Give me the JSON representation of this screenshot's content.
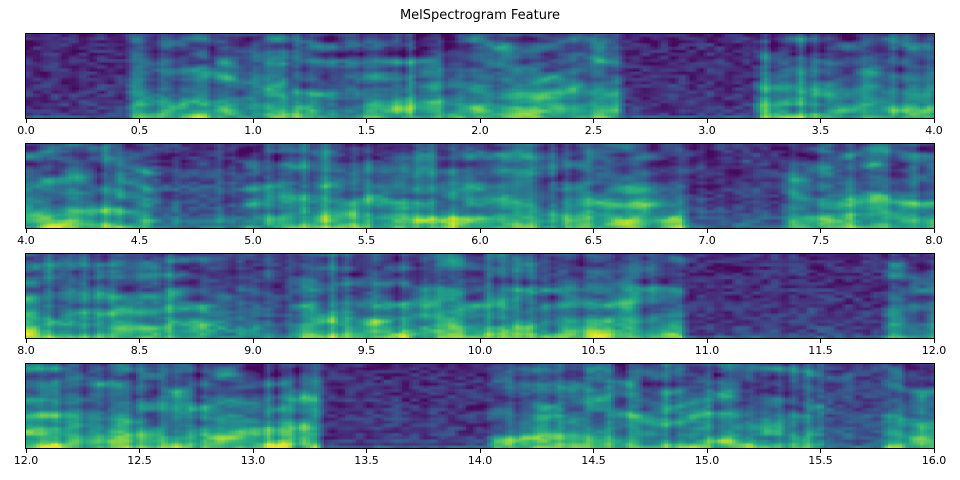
{
  "figure": {
    "title": "MelSpectrogram Feature"
  },
  "chart_data": {
    "type": "heatmap",
    "subtype": "mel_spectrogram",
    "title": "MelSpectrogram Feature",
    "colormap": "viridis",
    "viridis_stops": [
      "#440154",
      "#482878",
      "#3e4a89",
      "#31688e",
      "#26828e",
      "#1f9e89",
      "#35b779",
      "#6ece58",
      "#b5de2b",
      "#fde725"
    ],
    "x_unit": "seconds",
    "n_subplots": 4,
    "y_axis": "mel frequency bins (unlabeled)",
    "subplots": [
      {
        "x_range": [
          0.0,
          4.0
        ],
        "x_ticks": [
          "0.0",
          "0.5",
          "1.0",
          "1.5",
          "2.0",
          "2.5",
          "3.0",
          "3.5",
          "4.0"
        ],
        "activity_segments": [
          {
            "from": 0.0,
            "to": 0.45,
            "level": 0.12
          },
          {
            "from": 0.45,
            "to": 1.38,
            "level": 0.75
          },
          {
            "from": 1.38,
            "to": 1.47,
            "level": 0.45
          },
          {
            "from": 1.47,
            "to": 2.62,
            "level": 0.8
          },
          {
            "from": 2.62,
            "to": 3.22,
            "level": 0.12
          },
          {
            "from": 3.22,
            "to": 4.0,
            "level": 0.8
          }
        ]
      },
      {
        "x_range": [
          4.0,
          8.0
        ],
        "x_ticks": [
          "4.0",
          "4.5",
          "5.0",
          "5.5",
          "6.0",
          "6.5",
          "7.0",
          "7.5",
          "8.0"
        ],
        "activity_segments": [
          {
            "from": 4.0,
            "to": 4.55,
            "level": 0.85
          },
          {
            "from": 4.55,
            "to": 4.95,
            "level": 0.45
          },
          {
            "from": 4.95,
            "to": 6.9,
            "level": 0.8
          },
          {
            "from": 6.9,
            "to": 7.35,
            "level": 0.28
          },
          {
            "from": 7.35,
            "to": 8.0,
            "level": 0.8
          }
        ]
      },
      {
        "x_range": [
          8.0,
          12.0
        ],
        "x_ticks": [
          "8.0",
          "8.5",
          "9.0",
          "9.5",
          "10.0",
          "10.5",
          "11.0",
          "11.5",
          "12.0"
        ],
        "activity_segments": [
          {
            "from": 8.0,
            "to": 8.8,
            "level": 0.8
          },
          {
            "from": 8.8,
            "to": 9.2,
            "level": 0.5
          },
          {
            "from": 9.2,
            "to": 10.9,
            "level": 0.8
          },
          {
            "from": 10.9,
            "to": 11.78,
            "level": 0.15
          },
          {
            "from": 11.78,
            "to": 12.0,
            "level": 0.75
          }
        ]
      },
      {
        "x_range": [
          12.0,
          16.0
        ],
        "x_ticks": [
          "12.0",
          "12.5",
          "13.0",
          "13.5",
          "14.0",
          "14.5",
          "15.0",
          "15.5",
          "16.0"
        ],
        "activity_segments": [
          {
            "from": 12.0,
            "to": 13.3,
            "level": 0.85
          },
          {
            "from": 13.3,
            "to": 14.05,
            "level": 0.15
          },
          {
            "from": 14.05,
            "to": 15.5,
            "level": 0.8
          },
          {
            "from": 15.5,
            "to": 15.78,
            "level": 0.35
          },
          {
            "from": 15.78,
            "to": 16.0,
            "level": 0.75
          }
        ]
      }
    ]
  }
}
